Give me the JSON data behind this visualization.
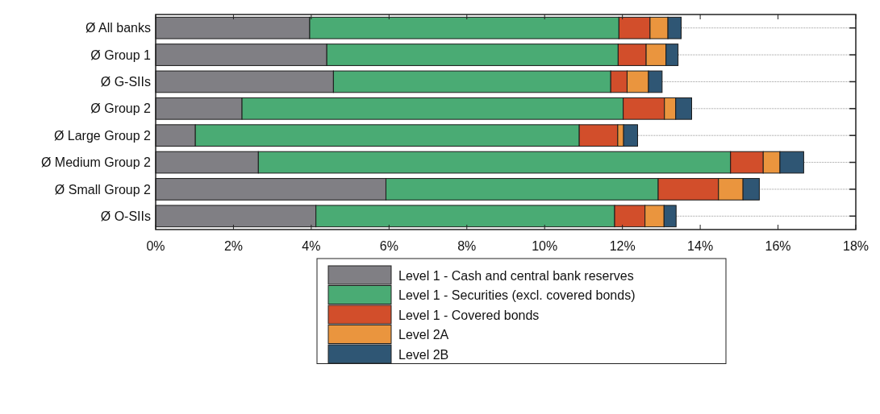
{
  "chart_data": {
    "type": "bar",
    "orientation": "horizontal",
    "stacked": true,
    "categories": [
      "Ø All banks",
      "Ø Group 1",
      "Ø G-SIIs",
      "Ø Group 2",
      "Ø Large Group 2",
      "Ø Medium Group 2",
      "Ø Small Group 2",
      "Ø O-SIIs"
    ],
    "series": [
      {
        "name": "Level 1 - Cash and central bank reserves",
        "color": "#807f84",
        "values": [
          3.96,
          4.4,
          4.57,
          2.22,
          1.02,
          2.64,
          5.92,
          4.12
        ]
      },
      {
        "name": "Level 1 - Securities (excl. covered bonds)",
        "color": "#4aab74",
        "values": [
          7.95,
          7.49,
          7.13,
          9.8,
          9.87,
          12.14,
          7.0,
          7.68
        ]
      },
      {
        "name": "Level 1 - Covered bonds",
        "color": "#d24e2b",
        "values": [
          0.8,
          0.72,
          0.42,
          1.06,
          0.99,
          0.84,
          1.55,
          0.78
        ]
      },
      {
        "name": "Level 2A",
        "color": "#ea953e",
        "values": [
          0.46,
          0.51,
          0.55,
          0.29,
          0.15,
          0.43,
          0.63,
          0.49
        ]
      },
      {
        "name": "Level 2B",
        "color": "#2f5674",
        "values": [
          0.34,
          0.31,
          0.35,
          0.41,
          0.36,
          0.61,
          0.42,
          0.31
        ]
      }
    ],
    "xlim": [
      0,
      18
    ],
    "xticks": [
      {
        "value": 0,
        "label": "0%"
      },
      {
        "value": 2,
        "label": "2%"
      },
      {
        "value": 4,
        "label": "4%"
      },
      {
        "value": 6,
        "label": "6%"
      },
      {
        "value": 8,
        "label": "8%"
      },
      {
        "value": 10,
        "label": "10%"
      },
      {
        "value": 12,
        "label": "12%"
      },
      {
        "value": 14,
        "label": "14%"
      },
      {
        "value": 16,
        "label": "16%"
      },
      {
        "value": 18,
        "label": "18%"
      }
    ],
    "grid": "y",
    "legend": "bottom"
  }
}
